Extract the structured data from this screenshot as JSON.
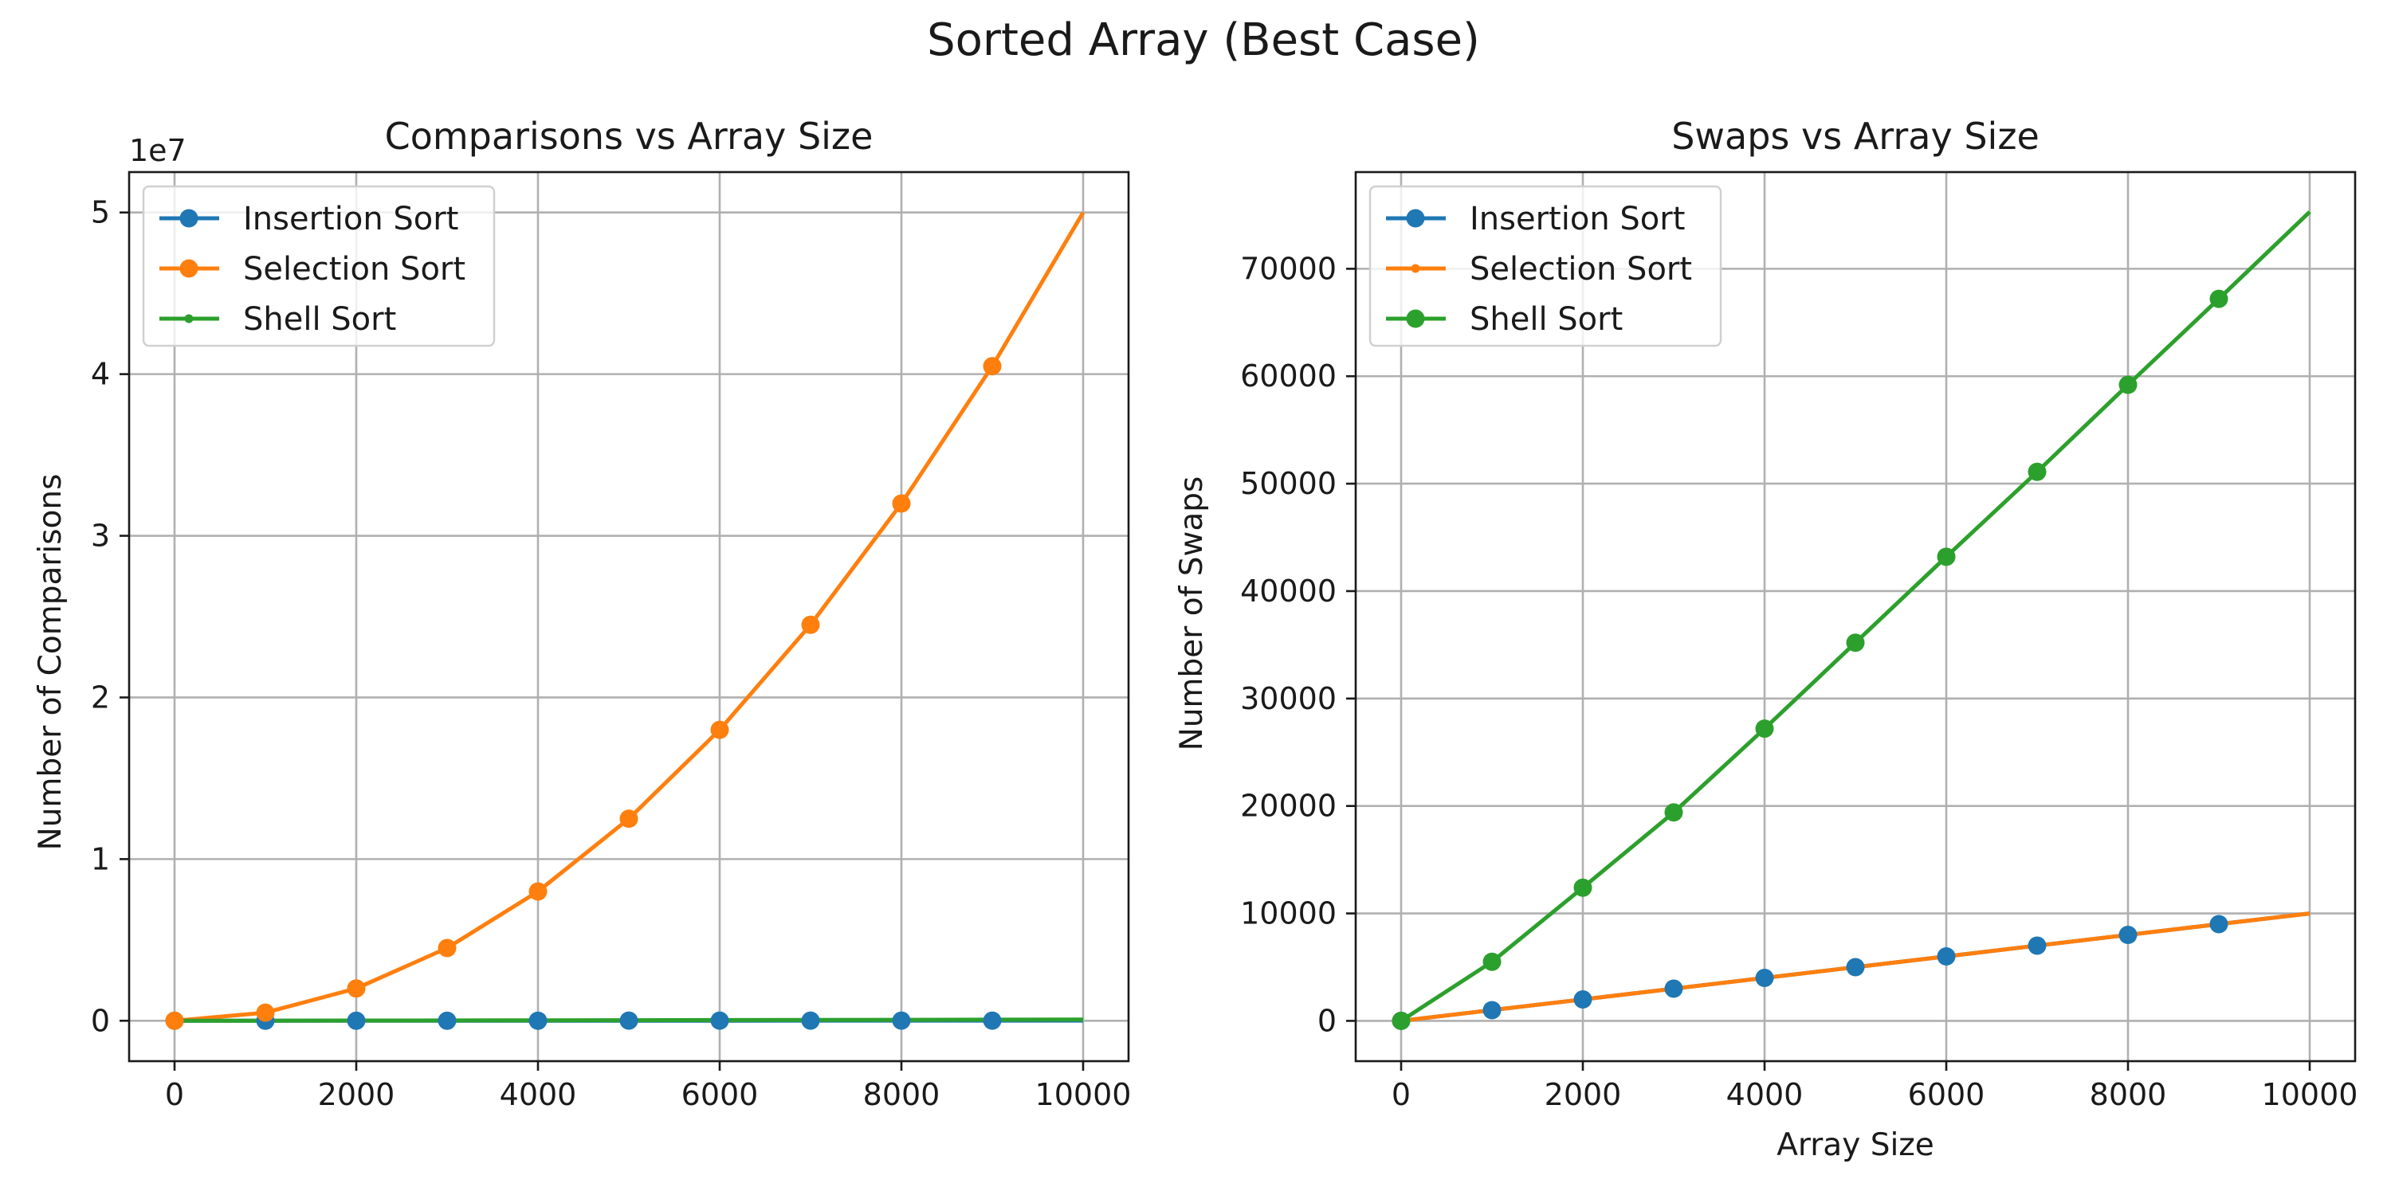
{
  "figure": {
    "title": "Sorted Array (Best Case)"
  },
  "chart_data": [
    {
      "type": "line",
      "title": "Comparisons vs Array Size",
      "xlabel": "",
      "ylabel": "Number of Comparisons",
      "y_offset_label": "1e7",
      "xlim": [
        -500,
        10500
      ],
      "ylim": [
        -2500000,
        52500000
      ],
      "xticks": [
        0,
        2000,
        4000,
        6000,
        8000,
        10000
      ],
      "xtick_labels": [
        "0",
        "2000",
        "4000",
        "6000",
        "8000",
        "10000"
      ],
      "yticks": [
        0,
        10000000,
        20000000,
        30000000,
        40000000,
        50000000
      ],
      "ytick_labels": [
        "0",
        "1",
        "2",
        "3",
        "4",
        "5"
      ],
      "grid": true,
      "legend_position": "upper-left",
      "x": [
        0,
        1000,
        2000,
        3000,
        4000,
        5000,
        6000,
        7000,
        8000,
        9000,
        10000
      ],
      "series": [
        {
          "name": "Insertion Sort",
          "color": "#1f77b4",
          "marker": "large",
          "values": [
            0,
            999,
            1999,
            2999,
            3999,
            4999,
            5999,
            6999,
            7999,
            8999,
            9999
          ],
          "marker_indices": [
            0,
            1,
            2,
            3,
            4,
            5,
            6,
            7,
            8,
            9
          ]
        },
        {
          "name": "Selection Sort",
          "color": "#ff7f0e",
          "marker": "large",
          "values": [
            0,
            499500,
            1999000,
            4498500,
            7998000,
            12497500,
            17997000,
            24496500,
            31996000,
            40495500,
            49995000
          ],
          "marker_indices": [
            0,
            1,
            2,
            3,
            4,
            5,
            6,
            7,
            8,
            9
          ]
        },
        {
          "name": "Shell Sort",
          "color": "#2ca02c",
          "marker": "small",
          "values": [
            0,
            5500,
            12400,
            19400,
            27200,
            35200,
            43200,
            51100,
            59200,
            67200,
            75300
          ],
          "marker_indices": []
        }
      ]
    },
    {
      "type": "line",
      "title": "Swaps vs Array Size",
      "xlabel": "Array Size",
      "ylabel": "Number of Swaps",
      "xlim": [
        -500,
        10500
      ],
      "ylim": [
        -3750,
        79000
      ],
      "xticks": [
        0,
        2000,
        4000,
        6000,
        8000,
        10000
      ],
      "xtick_labels": [
        "0",
        "2000",
        "4000",
        "6000",
        "8000",
        "10000"
      ],
      "yticks": [
        0,
        10000,
        20000,
        30000,
        40000,
        50000,
        60000,
        70000
      ],
      "ytick_labels": [
        "0",
        "10000",
        "20000",
        "30000",
        "40000",
        "50000",
        "60000",
        "70000"
      ],
      "grid": true,
      "legend_position": "upper-left",
      "x": [
        0,
        1000,
        2000,
        3000,
        4000,
        5000,
        6000,
        7000,
        8000,
        9000,
        10000
      ],
      "series": [
        {
          "name": "Insertion Sort",
          "color": "#1f77b4",
          "marker": "large",
          "values": [
            0,
            1000,
            2000,
            3000,
            4000,
            5000,
            6000,
            7000,
            8000,
            9000,
            10000
          ],
          "marker_indices": [
            0,
            1,
            2,
            3,
            4,
            5,
            6,
            7,
            8,
            9
          ]
        },
        {
          "name": "Selection Sort",
          "color": "#ff7f0e",
          "marker": "small",
          "values": [
            0,
            1000,
            2000,
            3000,
            4000,
            5000,
            6000,
            7000,
            8000,
            9000,
            10000
          ],
          "marker_indices": []
        },
        {
          "name": "Shell Sort",
          "color": "#2ca02c",
          "marker": "large",
          "values": [
            0,
            5500,
            12400,
            19400,
            27200,
            35200,
            43200,
            51100,
            59200,
            67200,
            75300
          ],
          "marker_indices": [
            0,
            1,
            2,
            3,
            4,
            5,
            6,
            7,
            8,
            9
          ]
        }
      ]
    }
  ]
}
